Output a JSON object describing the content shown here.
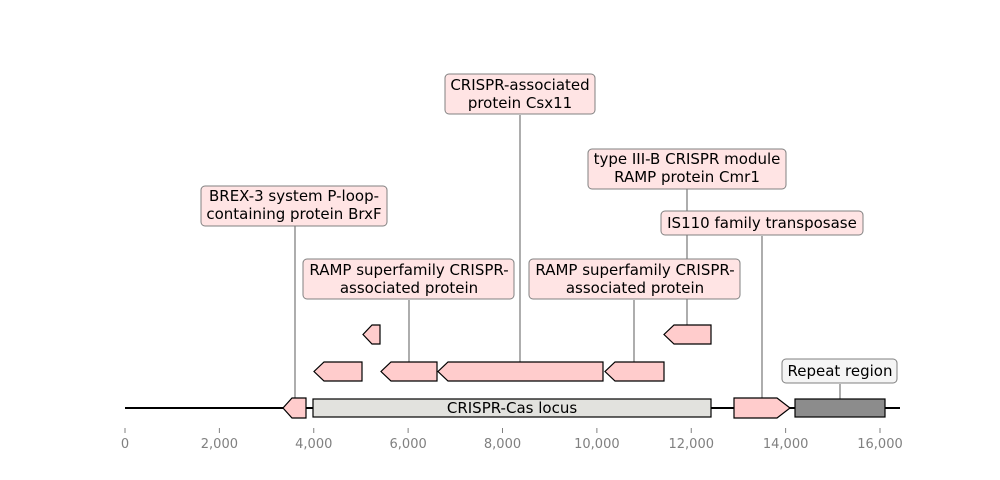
{
  "axis": {
    "ticks": [
      {
        "value": 0,
        "label": "0"
      },
      {
        "value": 2000,
        "label": "2,000"
      },
      {
        "value": 4000,
        "label": "4,000"
      },
      {
        "value": 6000,
        "label": "6,000"
      },
      {
        "value": 8000,
        "label": "8,000"
      },
      {
        "value": 10000,
        "label": "10,000"
      },
      {
        "value": 12000,
        "label": "12,000"
      },
      {
        "value": 14000,
        "label": "14,000"
      },
      {
        "value": 16000,
        "label": "16,000"
      }
    ],
    "sequence_length": 16500
  },
  "features": [
    {
      "name": "BREX-3 system P-loop-containing protein BrxF",
      "start": 3390,
      "end": 3860,
      "strand": -1
    },
    {
      "name": "CRISPR-Cas locus",
      "start": 4000,
      "end": 12450,
      "kind": "region"
    },
    {
      "name": "unlabeled small ORF",
      "start": 5030,
      "end": 5400,
      "strand": -1
    },
    {
      "name": "unlabeled ORF",
      "start": 4030,
      "end": 5030,
      "strand": -1
    },
    {
      "name": "RAMP superfamily CRISPR-associated protein",
      "start": 5400,
      "end": 6580,
      "strand": -1
    },
    {
      "name": "CRISPR-associated protein Csx11",
      "start": 6660,
      "end": 10150,
      "strand": -1
    },
    {
      "name": "RAMP superfamily CRISPR-associated protein",
      "start": 10150,
      "end": 11400,
      "strand": -1
    },
    {
      "name": "type III-B CRISPR module RAMP protein Cmr1",
      "start": 11400,
      "end": 12450,
      "strand": -1
    },
    {
      "name": "IS110 family transposase",
      "start": 12920,
      "end": 14150,
      "strand": 1
    },
    {
      "name": "Repeat region",
      "start": 14200,
      "end": 16130,
      "kind": "repeat"
    }
  ],
  "labels": {
    "brex": {
      "line1": "BREX-3 system P-loop-",
      "line2": "containing protein BrxF"
    },
    "ramp1": {
      "line1": "RAMP superfamily CRISPR-",
      "line2": "associated protein"
    },
    "csx11": {
      "line1": "CRISPR-associated",
      "line2": "protein Csx11"
    },
    "ramp2": {
      "line1": "RAMP superfamily CRISPR-",
      "line2": "associated protein"
    },
    "cmr1": {
      "line1": "type III-B CRISPR module",
      "line2": "RAMP protein Cmr1"
    },
    "is110": {
      "line1": "IS110 family transposase"
    },
    "repeat": {
      "line1": "Repeat region"
    },
    "locus": {
      "line1": "CRISPR-Cas locus"
    }
  },
  "colors": {
    "feature_fill": "#ffcccc",
    "label_fill": "#ffe4e4",
    "locus_fill": "#e2e2de",
    "repeat_fill": "#8c8c8c"
  }
}
